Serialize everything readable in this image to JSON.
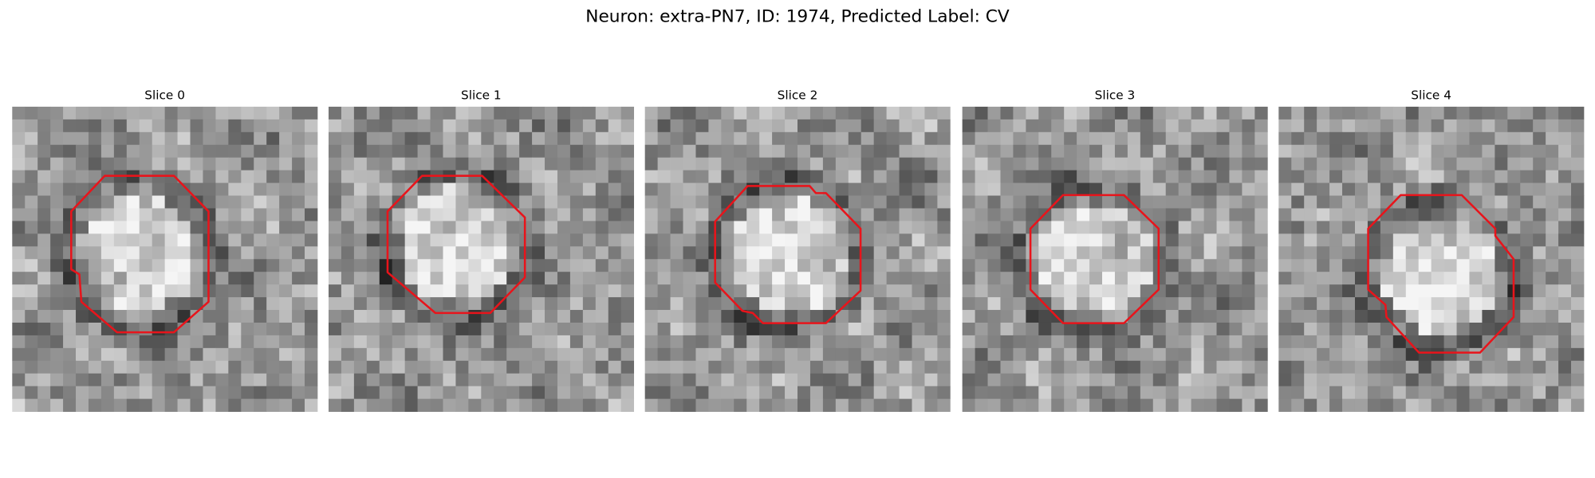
{
  "title": "Neuron: extra-PN7, ID: 1974, Predicted Label: CV",
  "panels": [
    {
      "title": "Slice 0"
    },
    {
      "title": "Slice 1"
    },
    {
      "title": "Slice 2"
    },
    {
      "title": "Slice 3"
    },
    {
      "title": "Slice 4"
    }
  ]
}
